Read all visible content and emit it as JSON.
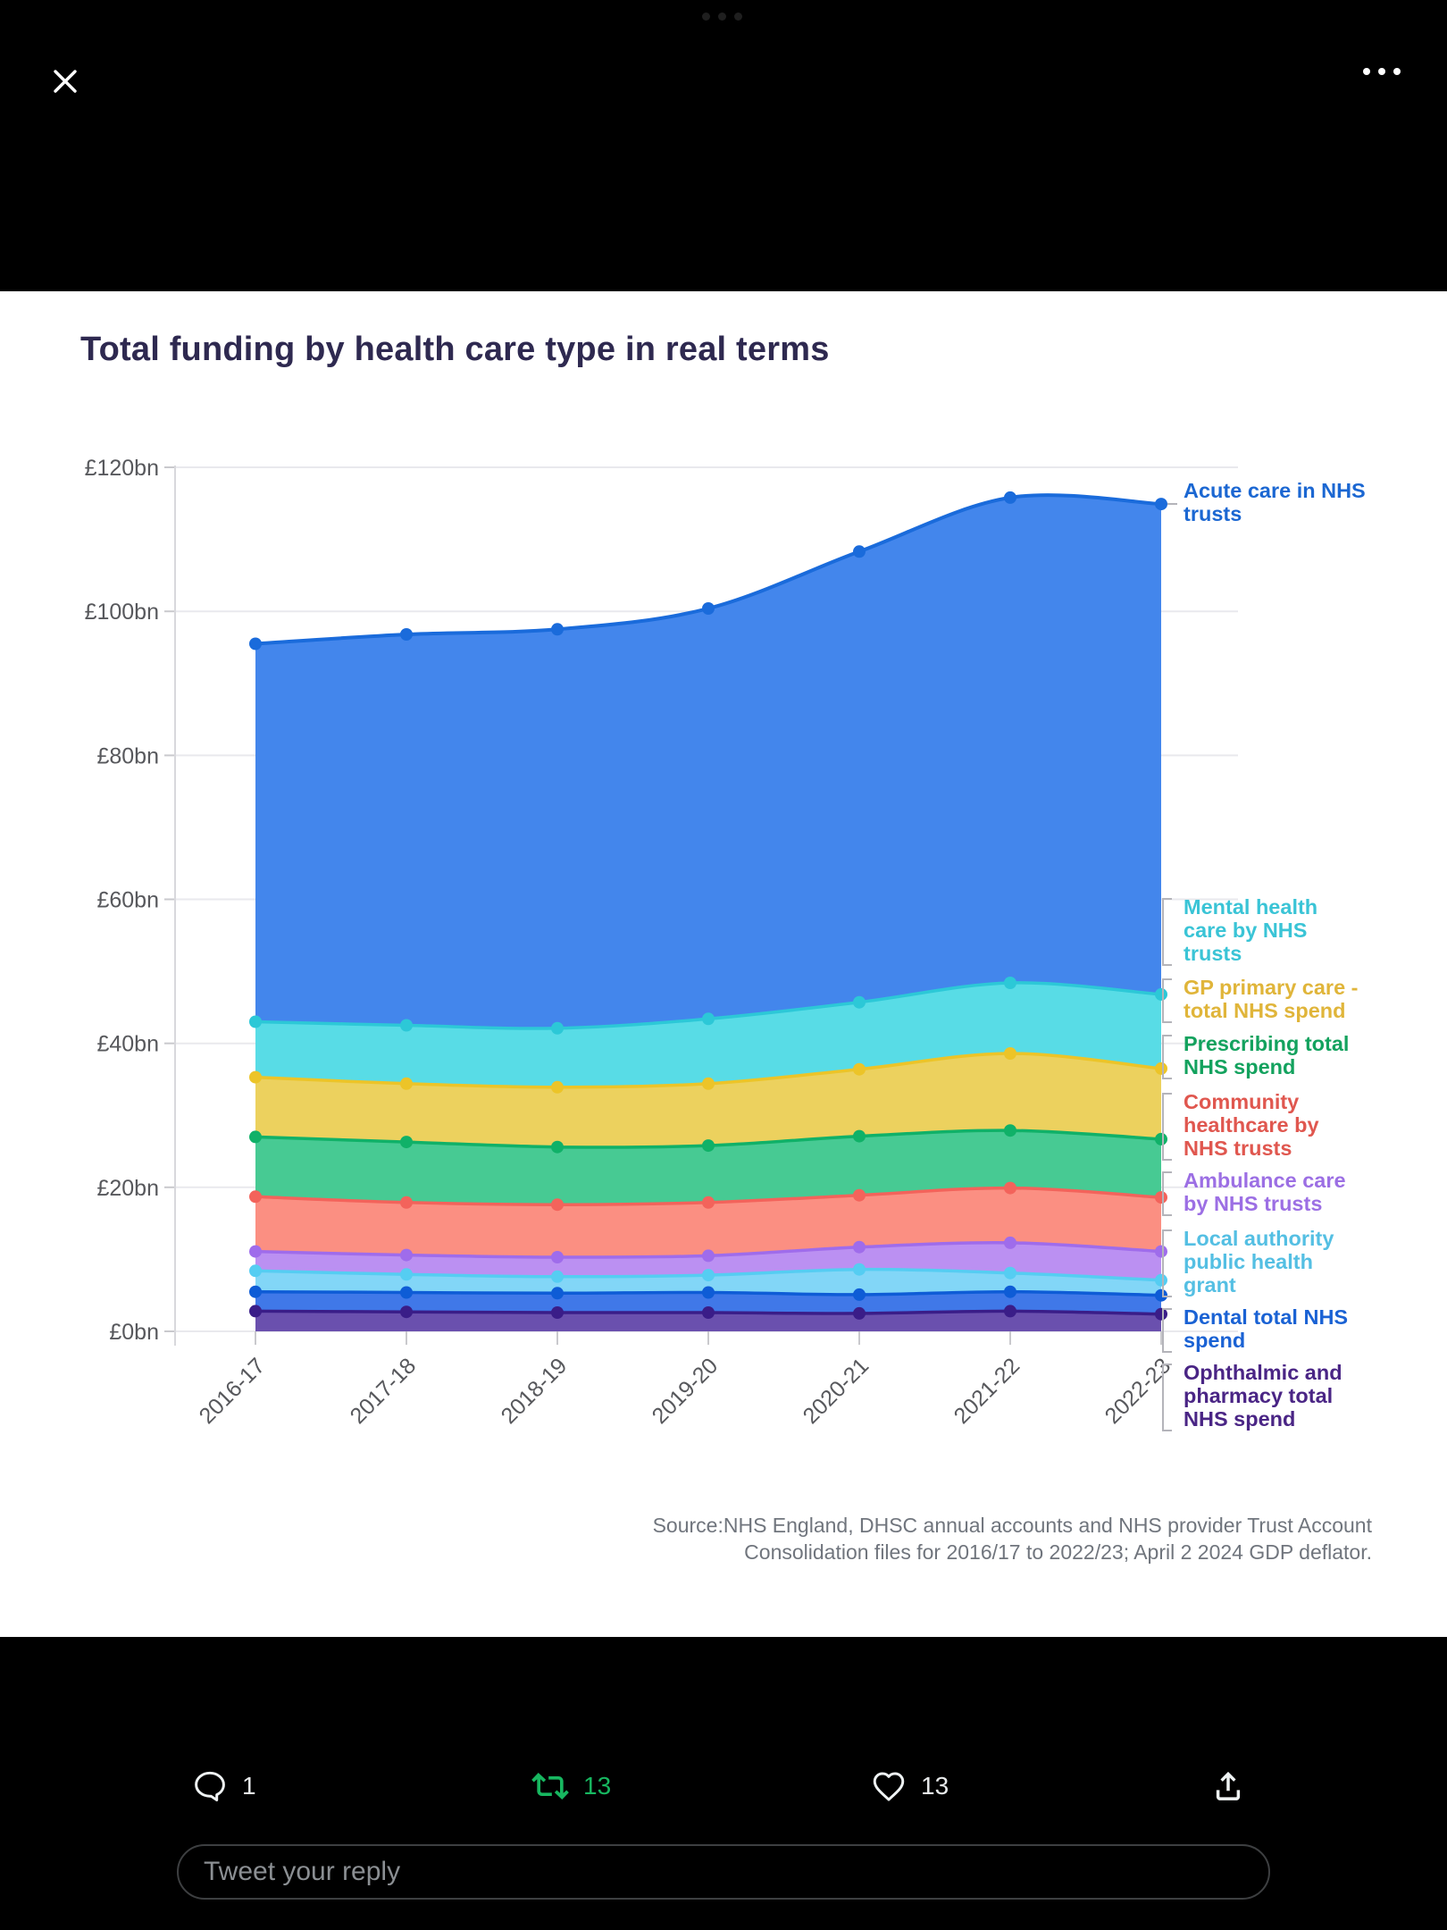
{
  "top_bar": {
    "drag_indicator_icon": "ellipsis-dots-dim",
    "close_icon": "x-cross",
    "more_icon": "ellipsis-dots-white"
  },
  "chart_data": {
    "type": "area",
    "stacked": true,
    "title": "Total funding by health care type in real terms",
    "categories": [
      "2016-17",
      "2017-18",
      "2018-19",
      "2019-20",
      "2020-21",
      "2021-22",
      "2022-23"
    ],
    "y_tick_labels": [
      "£0bn",
      "£20bn",
      "£40bn",
      "£60bn",
      "£80bn",
      "£100bn",
      "£120bn"
    ],
    "y_tick_values": [
      0,
      20,
      40,
      60,
      80,
      100,
      120
    ],
    "ylim": [
      0,
      120
    ],
    "unit": "£bn (real terms)",
    "grid": true,
    "legend_position": "right-annotations",
    "series": [
      {
        "key": "ophthalmic",
        "name": "Ophthalmic and pharmacy total NHS spend",
        "label_lines": [
          "Ophthalmic and",
          "pharmacy total",
          "NHS spend"
        ],
        "values_bn": [
          2.8,
          2.7,
          2.6,
          2.6,
          2.5,
          2.8,
          2.4
        ],
        "cumulative_top_bn": [
          2.8,
          2.7,
          2.6,
          2.6,
          2.5,
          2.8,
          2.4
        ],
        "fill": "#6a50ae",
        "line": "#3a1d88",
        "label_color": "#4a2585"
      },
      {
        "key": "dental",
        "name": "Dental total NHS spend",
        "label_lines": [
          "Dental total NHS",
          "spend"
        ],
        "values_bn": [
          2.7,
          2.7,
          2.7,
          2.8,
          2.6,
          2.7,
          2.6
        ],
        "cumulative_top_bn": [
          5.5,
          5.4,
          5.3,
          5.4,
          5.1,
          5.5,
          5.0
        ],
        "fill": "#4078e8",
        "line": "#0e5cd6",
        "label_color": "#1a62d4"
      },
      {
        "key": "local_authority",
        "name": "Local authority public health grant",
        "label_lines": [
          "Local authority",
          "public health",
          "grant"
        ],
        "values_bn": [
          2.9,
          2.5,
          2.3,
          2.4,
          3.5,
          2.6,
          2.1
        ],
        "cumulative_top_bn": [
          8.4,
          7.9,
          7.6,
          7.8,
          8.6,
          8.1,
          7.1
        ],
        "fill": "#82d6f7",
        "line": "#55cdf2",
        "label_color": "#54bfe3"
      },
      {
        "key": "ambulance",
        "name": "Ambulance care by NHS trusts",
        "label_lines": [
          "Ambulance care",
          "by NHS trusts"
        ],
        "values_bn": [
          2.7,
          2.7,
          2.7,
          2.7,
          3.1,
          4.2,
          4.0
        ],
        "cumulative_top_bn": [
          11.1,
          10.6,
          10.3,
          10.5,
          11.7,
          12.3,
          11.1
        ],
        "fill": "#bb90f2",
        "line": "#9f6ceb",
        "label_color": "#9c6fe4"
      },
      {
        "key": "community",
        "name": "Community healthcare by NHS trusts",
        "label_lines": [
          "Community",
          "healthcare by",
          "NHS trusts"
        ],
        "values_bn": [
          7.6,
          7.3,
          7.3,
          7.4,
          7.2,
          7.6,
          7.5
        ],
        "cumulative_top_bn": [
          18.7,
          17.9,
          17.6,
          17.9,
          18.9,
          19.9,
          18.6
        ],
        "fill": "#fb8f82",
        "line": "#f3635b",
        "label_color": "#e0574f"
      },
      {
        "key": "prescribing",
        "name": "Prescribing total NHS spend",
        "label_lines": [
          "Prescribing total",
          "NHS spend"
        ],
        "values_bn": [
          8.3,
          8.4,
          8.0,
          7.9,
          8.2,
          8.0,
          8.1
        ],
        "cumulative_top_bn": [
          27.0,
          26.3,
          25.6,
          25.8,
          27.1,
          27.9,
          26.7
        ],
        "fill": "#47ca93",
        "line": "#10b168",
        "label_color": "#13a25e"
      },
      {
        "key": "gp",
        "name": "GP primary care - total NHS spend",
        "label_lines": [
          "GP primary care -",
          "total NHS spend"
        ],
        "values_bn": [
          8.3,
          8.1,
          8.3,
          8.6,
          9.3,
          10.7,
          9.8
        ],
        "cumulative_top_bn": [
          35.3,
          34.4,
          33.9,
          34.4,
          36.4,
          38.6,
          36.5
        ],
        "fill": "#ecd15e",
        "line": "#ecc428",
        "label_color": "#e0b53a"
      },
      {
        "key": "mental",
        "name": "Mental health care by NHS trusts",
        "label_lines": [
          "Mental health",
          "care by NHS",
          "trusts"
        ],
        "values_bn": [
          7.7,
          8.1,
          8.2,
          9.0,
          9.3,
          9.8,
          10.3
        ],
        "cumulative_top_bn": [
          43.0,
          42.5,
          42.1,
          43.4,
          45.7,
          48.4,
          46.8
        ],
        "fill": "#58dce6",
        "line": "#2cc8d7",
        "label_color": "#3ac4d6"
      },
      {
        "key": "acute",
        "name": "Acute care in NHS trusts",
        "label_lines": [
          "Acute care in NHS",
          "trusts"
        ],
        "values_bn": [
          52.5,
          54.3,
          55.4,
          57.0,
          62.6,
          67.4,
          68.1
        ],
        "cumulative_top_bn": [
          95.5,
          96.8,
          97.5,
          100.4,
          108.3,
          115.8,
          114.9
        ],
        "fill": "#4386ec",
        "line": "#1a6bdb",
        "label_color": "#1b67d2"
      }
    ],
    "source_line1": "Source:NHS England, DHSC annual accounts and NHS provider Trust Account",
    "source_line2": "Consolidation files for 2016/17 to 2022/23; April 2 2024 GDP deflator."
  },
  "tweet_actions": {
    "reply_icon": "speech-bubble",
    "reply_count": "1",
    "retweet_icon": "retweet-arrows",
    "retweet_count": "13",
    "like_icon": "heart-outline",
    "like_count": "13",
    "share_icon": "arrow-up-from-tray"
  },
  "reply_box": {
    "placeholder": "Tweet your reply"
  },
  "colors": {
    "page_bg": "#000000",
    "card_bg": "#ffffff",
    "title_text": "#2e2950",
    "axis_text": "#57585c",
    "grid_line": "#e9e9ed",
    "tick_line": "#c9c9cd",
    "connector": "#b4b4ba",
    "source_text": "#70757d",
    "retweet_green": "#17b760",
    "action_icon": "#eff3f4"
  }
}
